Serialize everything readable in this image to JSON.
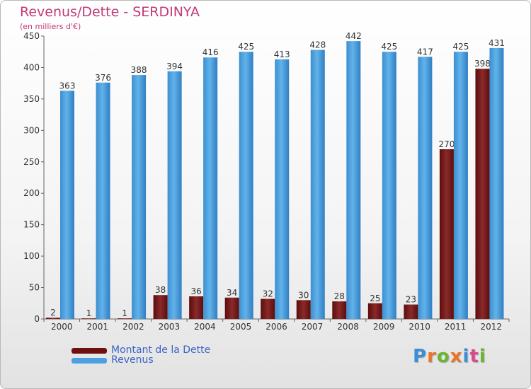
{
  "title": "Revenus/Dette - SERDINYA",
  "subtitle": "(en milliers d'€)",
  "logo": {
    "text": "Proxiti",
    "colors": [
      "#3b8fd6",
      "#e8742a",
      "#6bb52e",
      "#e8742a",
      "#3b8fd6",
      "#d64b8a",
      "#6bb52e"
    ]
  },
  "chart_data": {
    "type": "bar",
    "categories": [
      "2000",
      "2001",
      "2002",
      "2003",
      "2004",
      "2005",
      "2006",
      "2007",
      "2008",
      "2009",
      "2010",
      "2011",
      "2012"
    ],
    "series": [
      {
        "name": "Montant de la Dette",
        "values": [
          2,
          1,
          1,
          38,
          36,
          34,
          32,
          30,
          28,
          25,
          23,
          270,
          398
        ],
        "color": "#7a1a1a"
      },
      {
        "name": "Revenus",
        "values": [
          363,
          376,
          388,
          394,
          416,
          425,
          413,
          428,
          442,
          425,
          417,
          425,
          431
        ],
        "color": "#4aa0e0"
      }
    ],
    "ylim": [
      0,
      450
    ],
    "yticks": [
      0,
      50,
      100,
      150,
      200,
      250,
      300,
      350,
      400,
      450
    ],
    "grid": false,
    "legend_position": "bottom-left",
    "data_labels": true
  }
}
